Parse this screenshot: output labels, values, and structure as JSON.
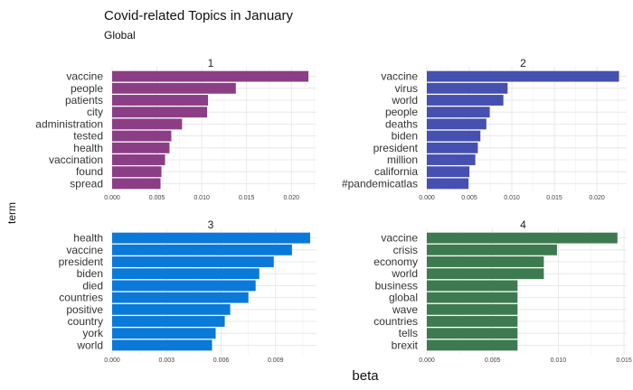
{
  "chart_data": {
    "type": "bar",
    "title": "Covid-related Topics in January",
    "subtitle": "Global",
    "xlabel": "beta",
    "ylabel": "term",
    "grid": true,
    "facets": [
      {
        "label": "1",
        "color": "#8B3E85",
        "xlim": [
          0,
          0.0228
        ],
        "ticks": [
          "0.000",
          "0.005",
          "0.010",
          "0.015",
          "0.020"
        ],
        "tick_values": [
          0,
          0.005,
          0.01,
          0.015,
          0.02
        ],
        "categories": [
          "vaccine",
          "people",
          "patients",
          "city",
          "administration",
          "tested",
          "health",
          "vaccination",
          "found",
          "spread"
        ],
        "values": [
          0.0219,
          0.0138,
          0.0107,
          0.0106,
          0.0078,
          0.0066,
          0.0064,
          0.0059,
          0.0055,
          0.0054
        ]
      },
      {
        "label": "2",
        "color": "#4650B0",
        "xlim": [
          0,
          0.0235
        ],
        "ticks": [
          "0.000",
          "0.005",
          "0.010",
          "0.015",
          "0.020"
        ],
        "tick_values": [
          0,
          0.005,
          0.01,
          0.015,
          0.02
        ],
        "categories": [
          "vaccine",
          "virus",
          "world",
          "people",
          "deaths",
          "biden",
          "president",
          "million",
          "california",
          "#pandemicatlas"
        ],
        "values": [
          0.0226,
          0.0095,
          0.009,
          0.0074,
          0.007,
          0.0063,
          0.006,
          0.0057,
          0.005,
          0.0049
        ]
      },
      {
        "label": "3",
        "color": "#0A79D8",
        "xlim": [
          0,
          0.01125
        ],
        "ticks": [
          "0.000",
          "0.003",
          "0.006",
          "0.009"
        ],
        "tick_values": [
          0,
          0.003,
          0.006,
          0.009
        ],
        "categories": [
          "health",
          "vaccine",
          "president",
          "biden",
          "died",
          "countries",
          "positive",
          "country",
          "york",
          "world"
        ],
        "values": [
          0.0109,
          0.0099,
          0.0089,
          0.0081,
          0.0079,
          0.0075,
          0.0065,
          0.0062,
          0.0057,
          0.0055
        ]
      },
      {
        "label": "4",
        "color": "#3E7A4F",
        "xlim": [
          0,
          0.0152
        ],
        "ticks": [
          "0.000",
          "0.005",
          "0.010",
          "0.015"
        ],
        "tick_values": [
          0,
          0.005,
          0.01,
          0.015
        ],
        "categories": [
          "vaccine",
          "crisis",
          "economy",
          "world",
          "business",
          "global",
          "wave",
          "countries",
          "tells",
          "brexit"
        ],
        "values": [
          0.0145,
          0.0099,
          0.0089,
          0.0089,
          0.0069,
          0.0069,
          0.0069,
          0.0069,
          0.0069,
          0.0069
        ]
      }
    ]
  }
}
